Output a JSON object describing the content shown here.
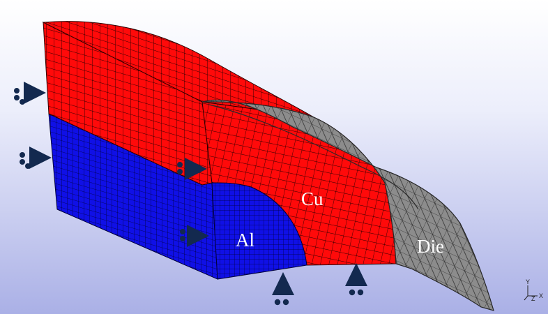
{
  "labels": {
    "cu": "Cu",
    "al": "Al",
    "die": "Die"
  },
  "triad": {
    "y": "Y",
    "z": "Z",
    "x": "X"
  },
  "colors": {
    "background_top": "#ffffff",
    "background_bottom": "#aab0e6",
    "copper": "#ff0a0a",
    "aluminum": "#1010e6",
    "die": "#8a8a8a",
    "mesh_line": "#1a1a1a",
    "constraint": "#13294f"
  },
  "parts": [
    {
      "name": "Cu",
      "material": "copper"
    },
    {
      "name": "Al",
      "material": "aluminum"
    },
    {
      "name": "Die",
      "material": "die"
    }
  ],
  "constraints": {
    "left_arrows": 4,
    "bottom_arrows": 2
  }
}
